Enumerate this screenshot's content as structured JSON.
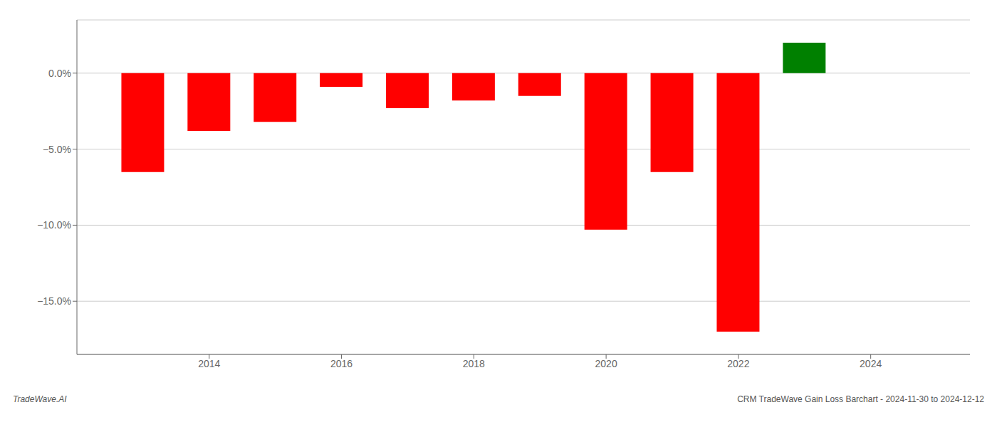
{
  "chart_data": {
    "type": "bar",
    "x": [
      2013,
      2014,
      2015,
      2016,
      2017,
      2018,
      2019,
      2020,
      2021,
      2022,
      2023
    ],
    "values": [
      -6.5,
      -3.8,
      -3.2,
      -0.9,
      -2.3,
      -1.8,
      -1.5,
      -10.3,
      -6.5,
      -17.0,
      2.0
    ],
    "colors": [
      "#ff0000",
      "#ff0000",
      "#ff0000",
      "#ff0000",
      "#ff0000",
      "#ff0000",
      "#ff0000",
      "#ff0000",
      "#ff0000",
      "#ff0000",
      "#008000"
    ],
    "xlim": [
      2012.0,
      2025.5
    ],
    "xticks": [
      2014,
      2016,
      2018,
      2020,
      2022,
      2024
    ],
    "ylim": [
      -18.5,
      3.5
    ],
    "yticks": [
      {
        "value": 0.0,
        "label": "0.0%"
      },
      {
        "value": -5.0,
        "label": "−5.0%"
      },
      {
        "value": -10.0,
        "label": "−10.0%"
      },
      {
        "value": -15.0,
        "label": "−15.0%"
      }
    ],
    "grid": true,
    "annotations": [
      "TradeWave.AI",
      "CRM TradeWave Gain Loss Barchart - 2024-11-30 to 2024-12-12"
    ]
  }
}
